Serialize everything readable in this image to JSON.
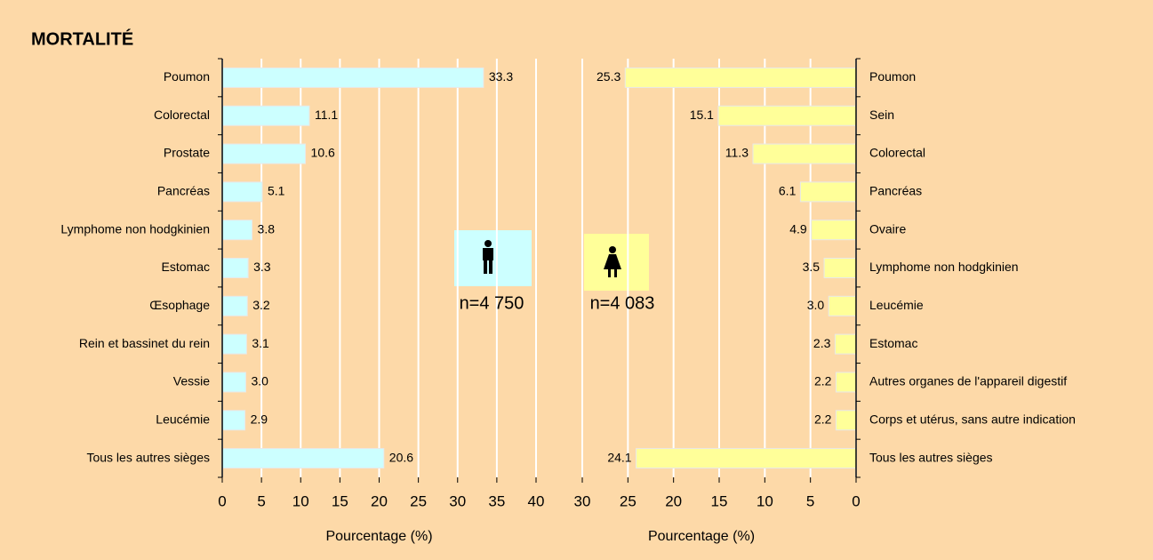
{
  "title": "MORTALITÉ",
  "chart_data": [
    {
      "type": "hbar",
      "color": "#ccffff",
      "categories": [
        "Poumon",
        "Colorectal",
        "Prostate",
        "Pancréas",
        "Lymphome non hodgkinien",
        "Estomac",
        "Œsophage",
        "Rein et bassinet du rein",
        "Vessie",
        "Leucémie",
        "Tous les autres sièges"
      ],
      "values": [
        33.3,
        11.1,
        10.6,
        5.1,
        3.8,
        3.3,
        3.2,
        3.1,
        3.0,
        2.9,
        20.6
      ],
      "value_labels": [
        "33.3",
        "11.1",
        "10.6",
        "5.1",
        "3.8",
        "3.3",
        "3.2",
        "3.1",
        "3.0",
        "2.9",
        "20.6"
      ],
      "xlim": [
        0,
        40
      ],
      "xticks": [
        0,
        5,
        10,
        15,
        20,
        25,
        30,
        35,
        40
      ],
      "grid": true,
      "xlabel": "Pourcentage (%)",
      "annotation": "n=4 750"
    },
    {
      "type": "hbar",
      "color": "#ffff99",
      "categories": [
        "Poumon",
        "Sein",
        "Colorectal",
        "Pancréas",
        "Ovaire",
        "Lymphome non hodgkinien",
        "Leucémie",
        "Estomac",
        "Autres organes de l'appareil digestif",
        "Corps et utérus, sans autre indication",
        "Tous les autres sièges"
      ],
      "values": [
        25.3,
        15.1,
        11.3,
        6.1,
        4.9,
        3.5,
        3.0,
        2.3,
        2.2,
        2.2,
        24.1
      ],
      "value_labels": [
        "25.3",
        "15.1",
        "11.3",
        "6.1",
        "4.9",
        "3.5",
        "3.0",
        "2.3",
        "2.2",
        "2.2",
        "24.1"
      ],
      "xlim": [
        30,
        0
      ],
      "xticks": [
        30,
        25,
        20,
        15,
        10,
        5,
        0
      ],
      "grid": true,
      "xlabel": "Pourcentage (%)",
      "annotation": "n=4 083"
    }
  ]
}
